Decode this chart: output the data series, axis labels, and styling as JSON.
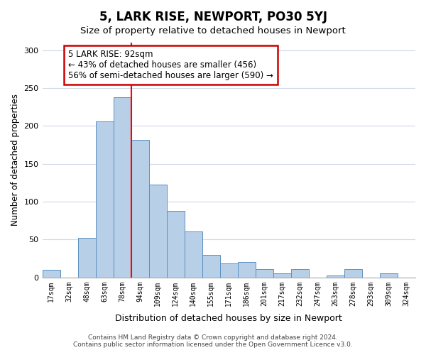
{
  "title": "5, LARK RISE, NEWPORT, PO30 5YJ",
  "subtitle": "Size of property relative to detached houses in Newport",
  "xlabel": "Distribution of detached houses by size in Newport",
  "ylabel": "Number of detached properties",
  "bar_labels": [
    "17sqm",
    "32sqm",
    "48sqm",
    "63sqm",
    "78sqm",
    "94sqm",
    "109sqm",
    "124sqm",
    "140sqm",
    "155sqm",
    "171sqm",
    "186sqm",
    "201sqm",
    "217sqm",
    "232sqm",
    "247sqm",
    "263sqm",
    "278sqm",
    "293sqm",
    "309sqm",
    "324sqm"
  ],
  "bar_values": [
    10,
    0,
    52,
    206,
    238,
    182,
    123,
    88,
    61,
    30,
    19,
    20,
    11,
    5,
    11,
    0,
    3,
    11,
    0,
    5,
    0
  ],
  "bar_color": "#b8cfe8",
  "bar_edge_color": "#5a8fc0",
  "red_line_index": 5,
  "annotation_title": "5 LARK RISE: 92sqm",
  "annotation_line1": "← 43% of detached houses are smaller (456)",
  "annotation_line2": "56% of semi-detached houses are larger (590) →",
  "annotation_box_color": "#ffffff",
  "annotation_box_edge": "#cc0000",
  "ylim": [
    0,
    310
  ],
  "yticks": [
    0,
    50,
    100,
    150,
    200,
    250,
    300
  ],
  "footer_line1": "Contains HM Land Registry data © Crown copyright and database right 2024.",
  "footer_line2": "Contains public sector information licensed under the Open Government Licence v3.0.",
  "background_color": "#ffffff",
  "grid_color": "#d0d8e8"
}
